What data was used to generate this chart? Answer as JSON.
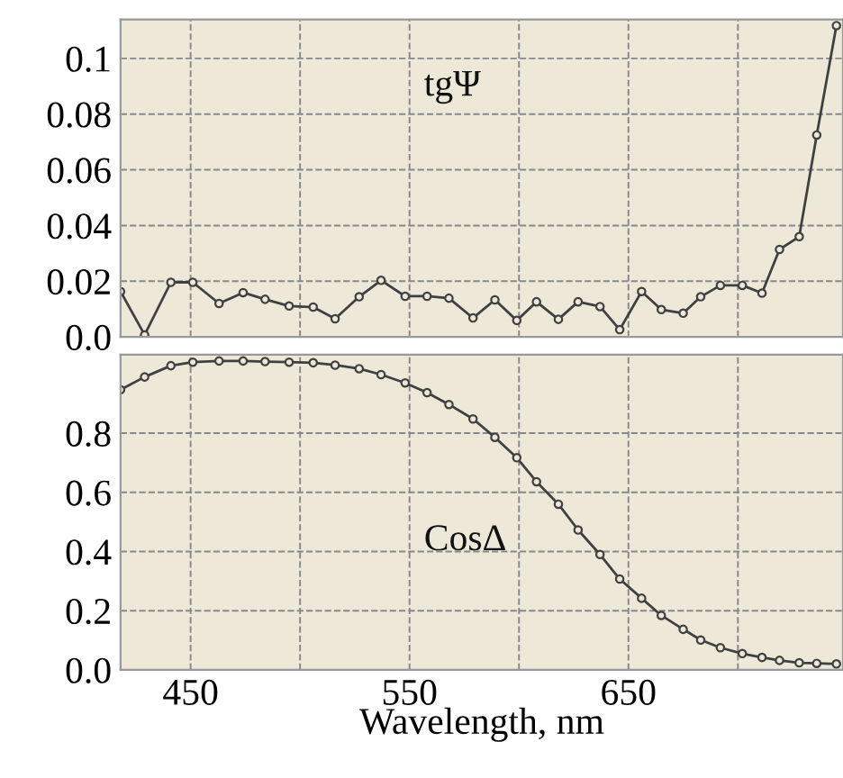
{
  "chart_data": [
    {
      "type": "line",
      "xlim": [
        418,
        748
      ],
      "xticks": [
        {
          "value": 450,
          "label": null
        },
        {
          "value": 500,
          "label": null
        },
        {
          "value": 550,
          "label": null
        },
        {
          "value": 600,
          "label": null
        },
        {
          "value": 650,
          "label": null
        },
        {
          "value": 700,
          "label": null
        }
      ],
      "ylim": [
        0,
        0.114
      ],
      "yticks": [
        {
          "value": 0,
          "label": "0.0"
        },
        0.02,
        0.04,
        0.06,
        0.08,
        0.1
      ],
      "tick_labels": "y",
      "grid": true,
      "marker": "circle",
      "line_style": "solid",
      "series": [
        {
          "name": "tgΨ",
          "color": "#404040",
          "x": [
            418,
            429,
            441,
            451,
            463,
            474,
            484,
            495,
            506,
            516,
            527,
            537,
            548,
            558,
            568,
            579,
            589,
            599,
            608,
            618,
            627,
            637,
            646,
            656,
            665,
            675,
            683,
            692,
            702,
            711,
            719,
            728,
            736,
            745
          ],
          "values": [
            0.0163,
            0.0007,
            0.0196,
            0.0196,
            0.012,
            0.0159,
            0.0135,
            0.0111,
            0.0107,
            0.0065,
            0.0144,
            0.0203,
            0.0146,
            0.0146,
            0.0139,
            0.0068,
            0.0133,
            0.0059,
            0.0126,
            0.0063,
            0.0126,
            0.0109,
            0.0026,
            0.0163,
            0.0098,
            0.0085,
            0.0144,
            0.0185,
            0.0185,
            0.0157,
            0.0314,
            0.036,
            0.0725,
            0.1118
          ]
        }
      ]
    },
    {
      "type": "line",
      "xlim": [
        418,
        748
      ],
      "xticks": [
        450,
        {
          "value": 500,
          "label": null
        },
        550,
        {
          "value": 600,
          "label": null
        },
        650,
        {
          "value": 700,
          "label": null
        }
      ],
      "ylim": [
        0,
        1.065
      ],
      "yticks": [
        {
          "value": 0,
          "label": "0.0"
        },
        0.2,
        0.4,
        0.6,
        0.8
      ],
      "xlabel": "Wavelength, nm",
      "grid": true,
      "marker": "circle",
      "line_style": "solid",
      "series": [
        {
          "name": "CosΔ",
          "color": "#404040",
          "x": [
            418,
            429,
            441,
            451,
            463,
            474,
            484,
            495,
            506,
            516,
            527,
            537,
            548,
            558,
            568,
            579,
            589,
            599,
            608,
            618,
            627,
            637,
            646,
            656,
            665,
            675,
            683,
            692,
            702,
            711,
            719,
            728,
            736,
            745
          ],
          "values": [
            0.947,
            0.99,
            1.028,
            1.04,
            1.044,
            1.044,
            1.042,
            1.04,
            1.038,
            1.03,
            1.018,
            0.998,
            0.97,
            0.937,
            0.897,
            0.848,
            0.786,
            0.717,
            0.636,
            0.56,
            0.473,
            0.39,
            0.307,
            0.242,
            0.184,
            0.137,
            0.101,
            0.075,
            0.055,
            0.042,
            0.032,
            0.024,
            0.022,
            0.02
          ]
        }
      ]
    }
  ]
}
